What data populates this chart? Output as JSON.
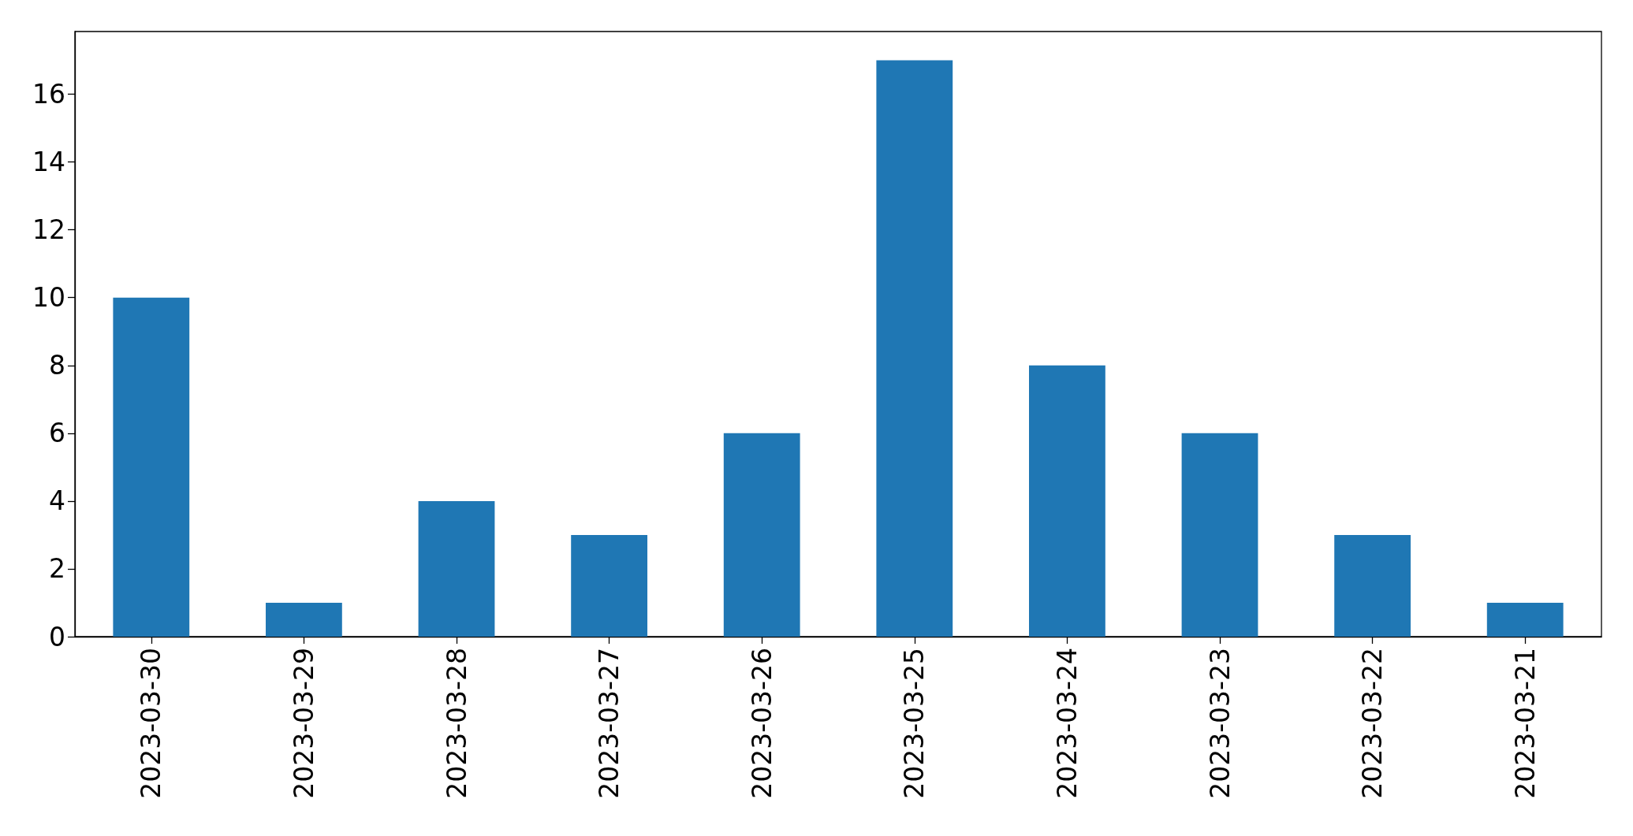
{
  "chart_data": {
    "type": "bar",
    "categories": [
      "2023-03-30",
      "2023-03-29",
      "2023-03-28",
      "2023-03-27",
      "2023-03-26",
      "2023-03-25",
      "2023-03-24",
      "2023-03-23",
      "2023-03-22",
      "2023-03-21"
    ],
    "values": [
      10,
      1,
      4,
      3,
      6,
      17,
      8,
      6,
      3,
      1
    ],
    "color": "#1f77b4",
    "ylim": [
      0,
      17.85
    ],
    "yticks": [
      0,
      2,
      4,
      6,
      8,
      10,
      12,
      14,
      16
    ],
    "grid": false
  }
}
